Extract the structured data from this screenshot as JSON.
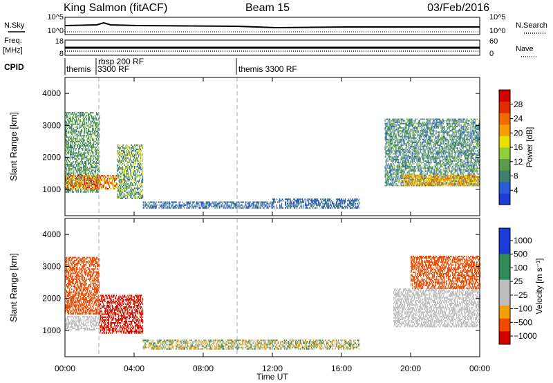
{
  "header": {
    "station": "King Salmon (fitACF)",
    "beam": "Beam 15",
    "date": "03/Feb/2016"
  },
  "noise_strip": {
    "left_label": "N.Sky",
    "right_label": "N.Search",
    "ticks_left": [
      "10^5",
      "10^0"
    ],
    "ticks_right": [
      "10^5",
      "10^0"
    ]
  },
  "freq_strip": {
    "left_label_1": "Freq.",
    "left_label_2": "[MHz]",
    "right_label": "Nave",
    "ticks_left": [
      "18",
      "8"
    ],
    "ticks_right": [
      "60",
      "0"
    ]
  },
  "cpid": {
    "label": "CPID",
    "segments": [
      {
        "start_hour": 0.0,
        "text": "themis"
      },
      {
        "start_hour": 2.0,
        "text": "3300 RF"
      },
      {
        "start_hour": 2.0,
        "text": "rbsp 200 RF"
      },
      {
        "start_hour": 10.0,
        "text": "themis 3300 RF"
      }
    ]
  },
  "colors": {
    "power": [
      "#1f3bd6",
      "#2a5bd8",
      "#3d7f6a",
      "#5a9a4a",
      "#8fcf3a",
      "#e8e000",
      "#f5a000",
      "#f06a00",
      "#e52a00",
      "#d40000"
    ],
    "velocity": [
      "#d40000",
      "#f04a00",
      "#f5a000",
      "#bdbdbd",
      "#2e8b57",
      "#1f3bd6"
    ]
  },
  "chart_data": [
    {
      "type": "heatmap",
      "title": "",
      "xlabel": "",
      "ylabel": "Slant Range [km]",
      "xlim": [
        0,
        24
      ],
      "ylim": [
        180,
        4500
      ],
      "x_ticks": [
        "00:00",
        "04:00",
        "08:00",
        "12:00",
        "16:00",
        "20:00",
        "00:00"
      ],
      "y_ticks": [
        1000,
        2000,
        3000,
        4000
      ],
      "colorbar": {
        "label": "Power [dB]",
        "range": [
          0,
          32
        ],
        "ticks": [
          4,
          8,
          12,
          16,
          20,
          24,
          28
        ]
      },
      "regions": [
        {
          "t": [
            0.0,
            2.0
          ],
          "range_km": [
            900,
            3400
          ],
          "power_db": [
            6,
            14
          ]
        },
        {
          "t": [
            0.0,
            3.0
          ],
          "range_km": [
            1000,
            1450
          ],
          "power_db": [
            16,
            30
          ]
        },
        {
          "t": [
            3.0,
            4.5
          ],
          "range_km": [
            700,
            2400
          ],
          "power_db": [
            4,
            20
          ]
        },
        {
          "t": [
            4.5,
            12.0
          ],
          "range_km": [
            400,
            600
          ],
          "power_db": [
            2,
            10
          ]
        },
        {
          "t": [
            12.0,
            17.0
          ],
          "range_km": [
            400,
            700
          ],
          "power_db": [
            2,
            10
          ]
        },
        {
          "t": [
            18.5,
            24.0
          ],
          "range_km": [
            1100,
            3200
          ],
          "power_db": [
            4,
            14
          ]
        },
        {
          "t": [
            19.5,
            24.0
          ],
          "range_km": [
            1100,
            1450
          ],
          "power_db": [
            16,
            26
          ]
        }
      ]
    },
    {
      "type": "heatmap",
      "title": "",
      "xlabel": "Time UT",
      "ylabel": "Slant Range [km]",
      "xlim": [
        0,
        24
      ],
      "ylim": [
        180,
        4500
      ],
      "x_ticks": [
        "00:00",
        "04:00",
        "08:00",
        "12:00",
        "16:00",
        "20:00",
        "00:00"
      ],
      "y_ticks": [
        1000,
        2000,
        3000,
        4000
      ],
      "colorbar": {
        "label": "Velocity [m s⁻¹]",
        "tick_labels": [
          "1000",
          "500",
          "100",
          "25",
          "−25",
          "−100",
          "−500",
          "−1000"
        ]
      },
      "regions": [
        {
          "t": [
            0.0,
            2.0
          ],
          "range_km": [
            1000,
            1450
          ],
          "velocity_ms": [
            -25,
            25
          ]
        },
        {
          "t": [
            0.0,
            2.0
          ],
          "range_km": [
            1500,
            3300
          ],
          "velocity_ms": [
            -500,
            -100
          ]
        },
        {
          "t": [
            2.0,
            4.5
          ],
          "range_km": [
            900,
            2100
          ],
          "velocity_ms": [
            -1000,
            -300
          ]
        },
        {
          "t": [
            4.5,
            12.0
          ],
          "range_km": [
            400,
            700
          ],
          "velocity_ms": [
            -100,
            100
          ]
        },
        {
          "t": [
            12.0,
            17.0
          ],
          "range_km": [
            400,
            700
          ],
          "velocity_ms": [
            -100,
            100
          ]
        },
        {
          "t": [
            19.0,
            24.0
          ],
          "range_km": [
            1100,
            2300
          ],
          "velocity_ms": [
            -25,
            25
          ]
        },
        {
          "t": [
            20.0,
            24.0
          ],
          "range_km": [
            2300,
            3300
          ],
          "velocity_ms": [
            -500,
            -100
          ]
        }
      ]
    }
  ]
}
